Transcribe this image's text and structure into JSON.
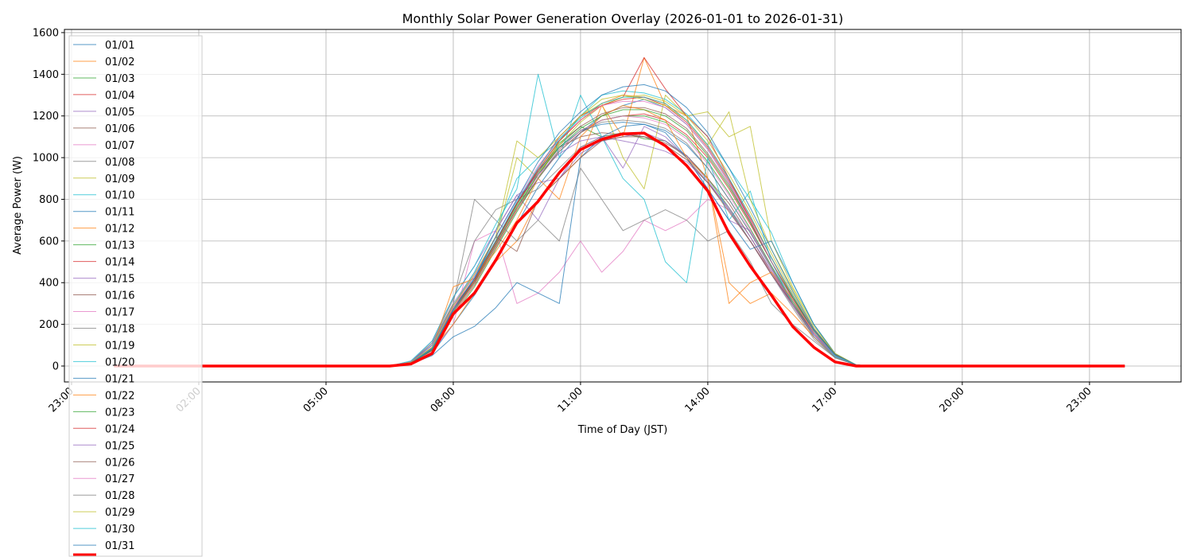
{
  "chart_data": {
    "type": "line",
    "title": "Monthly Solar Power Generation Overlay (2026-01-01 to 2026-01-31)",
    "xlabel": "Time of Day (JST)",
    "ylabel": "Average Power (W)",
    "ylim": [
      -75,
      1615
    ],
    "xlim": [
      "22:50",
      "01:08"
    ],
    "grid": true,
    "legend": "upper-left",
    "x_tick_labels": [
      "23:00",
      "02:00",
      "05:00",
      "08:00",
      "11:00",
      "14:00",
      "17:00",
      "20:00",
      "23:00"
    ],
    "y_ticks": [
      0,
      200,
      400,
      600,
      800,
      1000,
      1200,
      1400,
      1600
    ],
    "x": [
      "00:00",
      "06:30",
      "07:00",
      "07:30",
      "08:00",
      "08:30",
      "09:00",
      "09:30",
      "10:00",
      "10:30",
      "11:00",
      "11:30",
      "12:00",
      "12:30",
      "13:00",
      "13:30",
      "14:00",
      "14:30",
      "15:00",
      "15:30",
      "16:00",
      "16:30",
      "17:00",
      "17:30",
      "18:00",
      "23:50"
    ],
    "series": [
      {
        "name": "01/01",
        "values": [
          0,
          0,
          10,
          60,
          200,
          340,
          500,
          680,
          860,
          1000,
          1120,
          1200,
          1250,
          1280,
          1240,
          1160,
          1040,
          880,
          700,
          500,
          320,
          160,
          50,
          5,
          0,
          0
        ]
      },
      {
        "name": "01/02",
        "values": [
          0,
          0,
          20,
          90,
          280,
          420,
          600,
          780,
          940,
          1080,
          1180,
          1260,
          1300,
          1290,
          1260,
          1180,
          1060,
          900,
          720,
          520,
          330,
          170,
          55,
          5,
          0,
          0
        ]
      },
      {
        "name": "01/03",
        "values": [
          0,
          0,
          15,
          85,
          270,
          410,
          590,
          770,
          930,
          1070,
          1150,
          1100,
          1120,
          1090,
          1080,
          1010,
          900,
          760,
          600,
          450,
          300,
          160,
          55,
          5,
          0,
          0
        ]
      },
      {
        "name": "01/04",
        "values": [
          0,
          0,
          12,
          75,
          250,
          390,
          570,
          750,
          900,
          1030,
          1120,
          1180,
          1200,
          1210,
          1180,
          1110,
          1000,
          850,
          680,
          500,
          330,
          170,
          55,
          5,
          0,
          0
        ]
      },
      {
        "name": "01/05",
        "values": [
          0,
          0,
          20,
          100,
          300,
          450,
          650,
          820,
          700,
          900,
          1050,
          1100,
          950,
          1150,
          1100,
          1000,
          850,
          700,
          650,
          480,
          300,
          150,
          50,
          5,
          0,
          0
        ]
      },
      {
        "name": "01/06",
        "values": [
          0,
          0,
          15,
          80,
          260,
          400,
          580,
          760,
          920,
          1050,
          1100,
          1120,
          1110,
          1100,
          1070,
          1010,
          900,
          780,
          620,
          450,
          290,
          140,
          45,
          5,
          0,
          0
        ]
      },
      {
        "name": "01/07",
        "values": [
          0,
          0,
          15,
          70,
          200,
          600,
          650,
          300,
          350,
          450,
          600,
          450,
          550,
          700,
          650,
          700,
          800,
          750,
          600,
          450,
          300,
          150,
          50,
          5,
          0,
          0
        ]
      },
      {
        "name": "01/08",
        "values": [
          0,
          0,
          20,
          110,
          320,
          600,
          750,
          800,
          850,
          950,
          1050,
          1100,
          1120,
          1100,
          1080,
          1000,
          880,
          750,
          600,
          440,
          280,
          130,
          40,
          5,
          0,
          0
        ]
      },
      {
        "name": "01/09",
        "values": [
          0,
          0,
          15,
          80,
          260,
          400,
          600,
          1000,
          900,
          1080,
          1200,
          1260,
          1000,
          850,
          1300,
          1200,
          1220,
          1100,
          1150,
          600,
          380,
          200,
          60,
          5,
          0,
          0
        ]
      },
      {
        "name": "01/10",
        "values": [
          0,
          0,
          20,
          100,
          290,
          450,
          650,
          900,
          1000,
          1080,
          1200,
          1300,
          1320,
          1310,
          1280,
          1210,
          1100,
          950,
          800,
          640,
          400,
          200,
          60,
          5,
          0,
          0
        ]
      },
      {
        "name": "01/11",
        "values": [
          0,
          0,
          18,
          85,
          270,
          420,
          600,
          780,
          940,
          1050,
          1130,
          1160,
          1170,
          1160,
          1130,
          1060,
          950,
          800,
          640,
          470,
          300,
          150,
          50,
          5,
          0,
          0
        ]
      },
      {
        "name": "01/12",
        "values": [
          0,
          0,
          15,
          80,
          200,
          350,
          500,
          600,
          800,
          900,
          1000,
          1250,
          1100,
          1480,
          1250,
          1200,
          900,
          400,
          300,
          350,
          250,
          140,
          45,
          5,
          0,
          0
        ]
      },
      {
        "name": "01/13",
        "values": [
          0,
          0,
          15,
          75,
          240,
          380,
          560,
          740,
          900,
          1040,
          1130,
          1180,
          1200,
          1200,
          1170,
          1100,
          980,
          830,
          660,
          480,
          310,
          160,
          50,
          5,
          0,
          0
        ]
      },
      {
        "name": "01/14",
        "values": [
          0,
          0,
          15,
          80,
          260,
          410,
          590,
          780,
          950,
          1100,
          1200,
          1250,
          1290,
          1480,
          1330,
          1200,
          1100,
          900,
          700,
          500,
          320,
          170,
          55,
          5,
          0,
          0
        ]
      },
      {
        "name": "01/15",
        "values": [
          0,
          0,
          20,
          120,
          330,
          480,
          650,
          820,
          880,
          900,
          1020,
          1080,
          1100,
          1120,
          1080,
          1010,
          890,
          750,
          600,
          440,
          290,
          150,
          50,
          5,
          0,
          0
        ]
      },
      {
        "name": "01/16",
        "values": [
          0,
          0,
          15,
          85,
          280,
          420,
          600,
          780,
          930,
          1060,
          1150,
          1210,
          1240,
          1240,
          1210,
          1140,
          1020,
          870,
          690,
          500,
          320,
          160,
          50,
          5,
          0,
          0
        ]
      },
      {
        "name": "01/17",
        "values": [
          0,
          0,
          15,
          80,
          260,
          400,
          580,
          760,
          910,
          1040,
          1130,
          1180,
          1200,
          1190,
          1160,
          1090,
          970,
          820,
          650,
          470,
          300,
          150,
          45,
          5,
          0,
          0
        ]
      },
      {
        "name": "01/18",
        "values": [
          0,
          0,
          20,
          110,
          300,
          800,
          700,
          600,
          700,
          600,
          950,
          800,
          650,
          700,
          750,
          700,
          600,
          650,
          500,
          300,
          200,
          120,
          40,
          5,
          0,
          0
        ]
      },
      {
        "name": "01/19",
        "values": [
          0,
          0,
          15,
          80,
          260,
          400,
          580,
          760,
          920,
          1060,
          1170,
          1250,
          1290,
          1300,
          1270,
          1200,
          1080,
          920,
          740,
          540,
          350,
          180,
          60,
          5,
          0,
          0
        ]
      },
      {
        "name": "01/20",
        "values": [
          0,
          0,
          25,
          120,
          330,
          480,
          680,
          850,
          1400,
          1000,
          1300,
          1100,
          900,
          800,
          500,
          400,
          1000,
          700,
          840,
          500,
          300,
          150,
          45,
          5,
          0,
          0
        ]
      },
      {
        "name": "01/21",
        "values": [
          0,
          0,
          10,
          50,
          140,
          190,
          280,
          400,
          350,
          300,
          1000,
          1100,
          1150,
          1160,
          1120,
          1000,
          850,
          700,
          560,
          600,
          400,
          200,
          60,
          5,
          0,
          0
        ]
      },
      {
        "name": "01/22",
        "values": [
          0,
          0,
          15,
          80,
          380,
          420,
          550,
          700,
          900,
          800,
          1100,
          1200,
          1250,
          1230,
          1180,
          1000,
          900,
          300,
          400,
          450,
          320,
          160,
          50,
          5,
          0,
          0
        ]
      },
      {
        "name": "01/23",
        "values": [
          0,
          0,
          15,
          80,
          260,
          400,
          580,
          760,
          920,
          1050,
          1140,
          1200,
          1230,
          1230,
          1200,
          1130,
          1010,
          860,
          690,
          500,
          330,
          170,
          55,
          5,
          0,
          0
        ]
      },
      {
        "name": "01/24",
        "values": [
          0,
          0,
          15,
          85,
          270,
          410,
          600,
          780,
          940,
          1080,
          1180,
          1250,
          1280,
          1290,
          1250,
          1170,
          1050,
          890,
          710,
          520,
          340,
          175,
          55,
          5,
          0,
          0
        ]
      },
      {
        "name": "01/25",
        "values": [
          0,
          0,
          20,
          100,
          290,
          430,
          620,
          800,
          920,
          1020,
          1080,
          1100,
          1080,
          1060,
          1030,
          980,
          880,
          760,
          620,
          460,
          300,
          150,
          50,
          5,
          0,
          0
        ]
      },
      {
        "name": "01/26",
        "values": [
          0,
          0,
          15,
          80,
          270,
          420,
          620,
          550,
          800,
          900,
          1000,
          1080,
          1100,
          1100,
          1060,
          990,
          880,
          740,
          600,
          440,
          300,
          160,
          50,
          5,
          0,
          0
        ]
      },
      {
        "name": "01/27",
        "values": [
          0,
          0,
          18,
          90,
          280,
          440,
          620,
          800,
          960,
          1090,
          1180,
          1250,
          1270,
          1270,
          1240,
          1160,
          1040,
          880,
          700,
          500,
          320,
          160,
          50,
          5,
          0,
          0
        ]
      },
      {
        "name": "01/28",
        "values": [
          0,
          0,
          15,
          80,
          260,
          400,
          580,
          760,
          900,
          1030,
          1120,
          1170,
          1180,
          1170,
          1140,
          1070,
          950,
          800,
          640,
          470,
          300,
          140,
          40,
          5,
          0,
          0
        ]
      },
      {
        "name": "01/29",
        "values": [
          0,
          0,
          18,
          90,
          290,
          440,
          620,
          1080,
          1000,
          1100,
          1200,
          1280,
          1300,
          1280,
          1250,
          1180,
          1060,
          1220,
          800,
          560,
          370,
          190,
          60,
          5,
          0,
          0
        ]
      },
      {
        "name": "01/30",
        "values": [
          0,
          0,
          15,
          85,
          270,
          420,
          600,
          790,
          950,
          1090,
          1190,
          1260,
          1290,
          1290,
          1260,
          1180,
          1060,
          900,
          720,
          520,
          340,
          170,
          50,
          5,
          0,
          0
        ]
      },
      {
        "name": "01/31",
        "values": [
          0,
          0,
          15,
          80,
          270,
          420,
          620,
          800,
          980,
          1120,
          1220,
          1300,
          1340,
          1350,
          1320,
          1240,
          1120,
          950,
          760,
          560,
          360,
          180,
          55,
          5,
          0,
          0
        ]
      }
    ],
    "average": {
      "color": "#ff0000",
      "values": [
        0,
        0,
        10,
        60,
        250,
        350,
        508,
        687,
        790,
        928,
        1038,
        1088,
        1114,
        1118,
        1057,
        962,
        840,
        637,
        480,
        340,
        190,
        90,
        20,
        0,
        0,
        0
      ]
    },
    "colors": [
      "#1f77b4",
      "#ff7f0e",
      "#2ca02c",
      "#d62728",
      "#9467bd",
      "#8c564b",
      "#e377c2",
      "#7f7f7f",
      "#bcbd22",
      "#17becf"
    ]
  }
}
